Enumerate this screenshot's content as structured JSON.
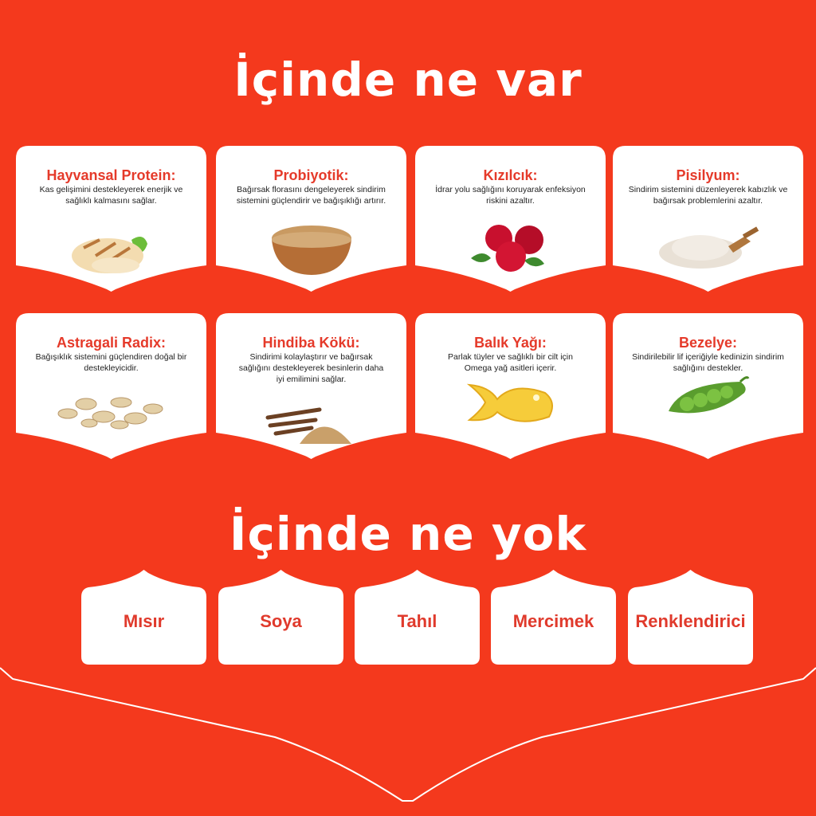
{
  "section_has": {
    "title": "İçinde ne var",
    "items": [
      {
        "name": "Hayvansal Protein:",
        "desc": "Kas gelişimini destekleyerek enerjik ve sağlıklı kalmasını sağlar.",
        "icon": "grilled-chicken-icon"
      },
      {
        "name": "Probiyotik:",
        "desc": "Bağırsak florasını dengeleyerek sindirim sistemini güçlendirir ve bağışıklığı artırır.",
        "icon": "powder-bowl-icon"
      },
      {
        "name": "Kızılcık:",
        "desc": "İdrar yolu sağlığını koruyarak enfeksiyon riskini azaltır.",
        "icon": "cranberry-icon"
      },
      {
        "name": "Pisilyum:",
        "desc": "Sindirim sistemini düzenleyerek kabızlık ve bağırsak problemlerini azaltır.",
        "icon": "psyllium-scoop-icon"
      },
      {
        "name": "Astragali Radix:",
        "desc": "Bağışıklık sistemini güçlendiren doğal bir destekleyicidir.",
        "icon": "root-slices-icon"
      },
      {
        "name": "Hindiba Kökü:",
        "desc": "Sindirimi kolaylaştırır ve bağırsak sağlığını destekleyerek besinlerin daha iyi emilimini sağlar.",
        "icon": "chicory-root-icon"
      },
      {
        "name": "Balık Yağı:",
        "desc": "Parlak tüyler ve sağlıklı bir cilt için Omega yağ asitleri içerir.",
        "icon": "fish-oil-capsule-icon"
      },
      {
        "name": "Bezelye:",
        "desc": "Sindirilebilir lif içeriğiyle kedinizin sindirim sağlığını destekler.",
        "icon": "pea-pod-icon"
      }
    ]
  },
  "section_hasnt": {
    "title": "İçinde ne yok",
    "items": [
      "Mısır",
      "Soya",
      "Tahıl",
      "Mercimek",
      "Renklendirici"
    ]
  },
  "colors": {
    "background": "#f4391d",
    "accent_text": "#e53a2a",
    "card": "#ffffff"
  }
}
